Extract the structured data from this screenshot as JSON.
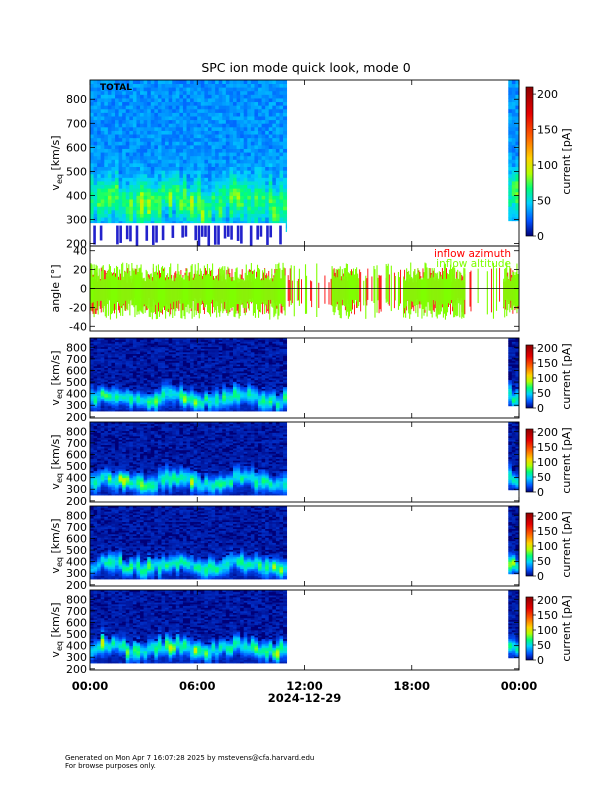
{
  "chart_data": {
    "type": "heatmap",
    "title": "SPC ion mode quick look, mode 0",
    "x_axis": {
      "ticks": [
        "00:00",
        "06:00",
        "12:00",
        "18:00",
        "00:00"
      ],
      "tick_hours": [
        0,
        6,
        12,
        18,
        24
      ],
      "date_label": "2024-12-29",
      "range_hours": [
        0,
        24
      ]
    },
    "data_gaps_hours": [
      [
        10.95,
        23.5
      ]
    ],
    "panels": [
      {
        "id": "total",
        "label": "TOTAL",
        "ylabel_main": "v",
        "ylabel_sub": "eq",
        "ylabel_unit": " [km/s]",
        "ylim": [
          190,
          880
        ],
        "yticks": [
          200,
          300,
          400,
          500,
          600,
          700,
          800
        ],
        "peak_velocity": 370,
        "colorbar": {
          "label": "current [pA]",
          "ticks": [
            0,
            50,
            100,
            150,
            200
          ],
          "range": [
            0,
            210
          ]
        }
      },
      {
        "id": "angles",
        "ylabel": "angle [°]",
        "ylim": [
          -45,
          45
        ],
        "yticks": [
          -40,
          -20,
          0,
          20,
          40
        ],
        "series": [
          {
            "name": "inflow azimuth",
            "color": "#ff0000",
            "typical_range": [
              -25,
              20
            ]
          },
          {
            "name": "inflow altitude",
            "color": "#7fff00",
            "typical_range": [
              -30,
              25
            ]
          }
        ]
      },
      {
        "id": "cup1",
        "ylabel_main": "v",
        "ylabel_sub": "eq",
        "ylabel_unit": " [km/s]",
        "ylim": [
          190,
          880
        ],
        "yticks": [
          200,
          300,
          400,
          500,
          600,
          700,
          800
        ],
        "peak_velocity": 350,
        "colorbar": {
          "label": "current [pA]",
          "ticks": [
            0,
            50,
            100,
            150,
            200
          ],
          "range": [
            0,
            210
          ]
        }
      },
      {
        "id": "cup2",
        "ylabel_main": "v",
        "ylabel_sub": "eq",
        "ylabel_unit": " [km/s]",
        "ylim": [
          190,
          880
        ],
        "yticks": [
          200,
          300,
          400,
          500,
          600,
          700,
          800
        ],
        "peak_velocity": 360,
        "colorbar": {
          "label": "current [pA]",
          "ticks": [
            0,
            50,
            100,
            150,
            200
          ],
          "range": [
            0,
            210
          ]
        }
      },
      {
        "id": "cup3",
        "ylabel_main": "v",
        "ylabel_sub": "eq",
        "ylabel_unit": " [km/s]",
        "ylim": [
          190,
          880
        ],
        "yticks": [
          200,
          300,
          400,
          500,
          600,
          700,
          800
        ],
        "peak_velocity": 360,
        "colorbar": {
          "label": "current [pA]",
          "ticks": [
            0,
            50,
            100,
            150,
            200
          ],
          "range": [
            0,
            210
          ]
        }
      },
      {
        "id": "cup4",
        "ylabel_main": "v",
        "ylabel_sub": "eq",
        "ylabel_unit": " [km/s]",
        "ylim": [
          190,
          880
        ],
        "yticks": [
          200,
          300,
          400,
          500,
          600,
          700,
          800
        ],
        "peak_velocity": 370,
        "colorbar": {
          "label": "current [pA]",
          "ticks": [
            0,
            50,
            100,
            150,
            200
          ],
          "range": [
            0,
            210
          ]
        }
      }
    ]
  },
  "footer": {
    "line1": "Generated on Mon Apr  7 16:07:28 2025 by mstevens@cfa.harvard.edu",
    "line2": "For browse purposes only."
  }
}
